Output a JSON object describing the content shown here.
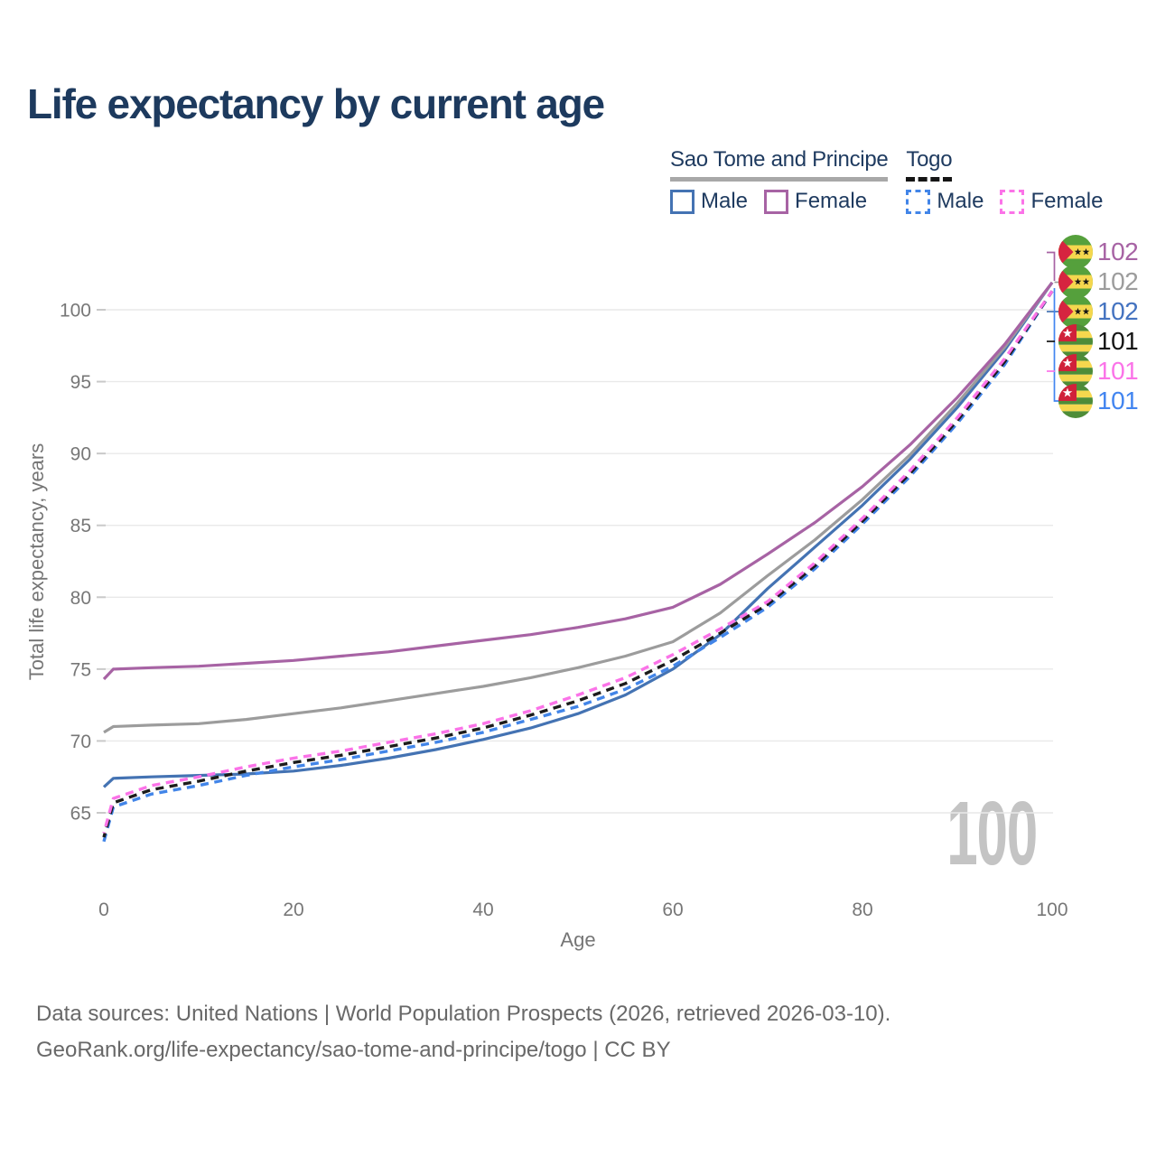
{
  "title": "Life expectancy by current age",
  "legend": {
    "groups": [
      {
        "label": "Sao Tome and Principe",
        "underline": "solid",
        "items": [
          {
            "label": "Male",
            "series_id": "stp-male"
          },
          {
            "label": "Female",
            "series_id": "stp-female"
          }
        ]
      },
      {
        "label": "Togo",
        "underline": "dashed",
        "items": [
          {
            "label": "Male",
            "series_id": "togo-male"
          },
          {
            "label": "Female",
            "series_id": "togo-female"
          }
        ]
      }
    ]
  },
  "chart_data": {
    "type": "line",
    "title": "Life expectancy by current age",
    "xlabel": "Age",
    "ylabel": "Total life expectancy, years",
    "xlim": [
      0,
      100
    ],
    "ylim": [
      62,
      103
    ],
    "x_ticks": [
      0,
      20,
      40,
      60,
      80,
      100
    ],
    "y_ticks": [
      65,
      70,
      75,
      80,
      85,
      90,
      95,
      100
    ],
    "grid": "horizontal-only",
    "legend_position": "top-right",
    "series": [
      {
        "id": "stp-male",
        "country": "Sao Tome and Principe",
        "legend_label": "Male",
        "color": "#4473b3",
        "dashed": false,
        "points": [
          [
            0,
            66.8
          ],
          [
            1,
            67.4
          ],
          [
            5,
            67.5
          ],
          [
            10,
            67.6
          ],
          [
            15,
            67.7
          ],
          [
            20,
            67.9
          ],
          [
            25,
            68.3
          ],
          [
            30,
            68.8
          ],
          [
            35,
            69.4
          ],
          [
            40,
            70.1
          ],
          [
            45,
            70.9
          ],
          [
            50,
            71.9
          ],
          [
            55,
            73.2
          ],
          [
            60,
            75.0
          ],
          [
            65,
            77.4
          ],
          [
            70,
            80.6
          ],
          [
            75,
            83.5
          ],
          [
            80,
            86.4
          ],
          [
            85,
            89.6
          ],
          [
            90,
            93.2
          ],
          [
            95,
            97.2
          ],
          [
            100,
            101.9
          ]
        ]
      },
      {
        "id": "stp-both",
        "country": "Sao Tome and Principe",
        "legend_label": null,
        "color": "#9c9c9c",
        "dashed": false,
        "points": [
          [
            0,
            70.6
          ],
          [
            1,
            71.0
          ],
          [
            5,
            71.1
          ],
          [
            10,
            71.2
          ],
          [
            15,
            71.5
          ],
          [
            20,
            71.9
          ],
          [
            25,
            72.3
          ],
          [
            30,
            72.8
          ],
          [
            35,
            73.3
          ],
          [
            40,
            73.8
          ],
          [
            45,
            74.4
          ],
          [
            50,
            75.1
          ],
          [
            55,
            75.9
          ],
          [
            60,
            76.9
          ],
          [
            65,
            78.9
          ],
          [
            70,
            81.5
          ],
          [
            75,
            84.0
          ],
          [
            80,
            86.8
          ],
          [
            85,
            89.9
          ],
          [
            90,
            93.5
          ],
          [
            95,
            97.4
          ],
          [
            100,
            101.9
          ]
        ]
      },
      {
        "id": "stp-female",
        "country": "Sao Tome and Principe",
        "legend_label": "Female",
        "color": "#a763a4",
        "dashed": false,
        "points": [
          [
            0,
            74.3
          ],
          [
            1,
            75.0
          ],
          [
            5,
            75.1
          ],
          [
            10,
            75.2
          ],
          [
            15,
            75.4
          ],
          [
            20,
            75.6
          ],
          [
            25,
            75.9
          ],
          [
            30,
            76.2
          ],
          [
            35,
            76.6
          ],
          [
            40,
            77.0
          ],
          [
            45,
            77.4
          ],
          [
            50,
            77.9
          ],
          [
            55,
            78.5
          ],
          [
            60,
            79.3
          ],
          [
            65,
            80.9
          ],
          [
            70,
            83.0
          ],
          [
            75,
            85.2
          ],
          [
            80,
            87.7
          ],
          [
            85,
            90.6
          ],
          [
            90,
            93.9
          ],
          [
            95,
            97.6
          ],
          [
            100,
            101.9
          ]
        ]
      },
      {
        "id": "togo-male",
        "country": "Togo",
        "legend_label": "Male",
        "color": "#4285e8",
        "dashed": true,
        "points": [
          [
            0,
            63.0
          ],
          [
            1,
            65.4
          ],
          [
            5,
            66.3
          ],
          [
            10,
            66.9
          ],
          [
            15,
            67.6
          ],
          [
            20,
            68.2
          ],
          [
            25,
            68.7
          ],
          [
            30,
            69.3
          ],
          [
            35,
            69.9
          ],
          [
            40,
            70.6
          ],
          [
            45,
            71.5
          ],
          [
            50,
            72.4
          ],
          [
            55,
            73.6
          ],
          [
            60,
            75.2
          ],
          [
            65,
            77.2
          ],
          [
            70,
            79.3
          ],
          [
            75,
            82.0
          ],
          [
            80,
            85.1
          ],
          [
            85,
            88.4
          ],
          [
            90,
            92.1
          ],
          [
            95,
            96.2
          ],
          [
            100,
            101.3
          ]
        ]
      },
      {
        "id": "togo-both",
        "country": "Togo",
        "legend_label": null,
        "color": "#1c1c1c",
        "dashed": true,
        "points": [
          [
            0,
            63.3
          ],
          [
            1,
            65.7
          ],
          [
            5,
            66.6
          ],
          [
            10,
            67.2
          ],
          [
            15,
            67.9
          ],
          [
            20,
            68.5
          ],
          [
            25,
            69.0
          ],
          [
            30,
            69.6
          ],
          [
            35,
            70.2
          ],
          [
            40,
            70.9
          ],
          [
            45,
            71.8
          ],
          [
            50,
            72.8
          ],
          [
            55,
            74.0
          ],
          [
            60,
            75.6
          ],
          [
            65,
            77.5
          ],
          [
            70,
            79.5
          ],
          [
            75,
            82.2
          ],
          [
            80,
            85.3
          ],
          [
            85,
            88.6
          ],
          [
            90,
            92.3
          ],
          [
            95,
            96.4
          ],
          [
            100,
            101.3
          ]
        ]
      },
      {
        "id": "togo-female",
        "country": "Togo",
        "legend_label": "Female",
        "color": "#fb73e8",
        "dashed": true,
        "points": [
          [
            0,
            63.6
          ],
          [
            1,
            66.0
          ],
          [
            5,
            66.9
          ],
          [
            10,
            67.5
          ],
          [
            15,
            68.2
          ],
          [
            20,
            68.8
          ],
          [
            25,
            69.3
          ],
          [
            30,
            69.9
          ],
          [
            35,
            70.5
          ],
          [
            40,
            71.2
          ],
          [
            45,
            72.1
          ],
          [
            50,
            73.2
          ],
          [
            55,
            74.4
          ],
          [
            60,
            76.0
          ],
          [
            65,
            77.8
          ],
          [
            70,
            79.7
          ],
          [
            75,
            82.4
          ],
          [
            80,
            85.5
          ],
          [
            85,
            88.8
          ],
          [
            90,
            92.5
          ],
          [
            95,
            96.6
          ],
          [
            100,
            101.3
          ]
        ]
      }
    ]
  },
  "end_labels": [
    {
      "value": "102",
      "color": "#a763a4",
      "flag": "sao-tome-and-principe"
    },
    {
      "value": "102",
      "color": "#9c9c9c",
      "flag": "sao-tome-and-principe"
    },
    {
      "value": "102",
      "color": "#4473c0",
      "flag": "sao-tome-and-principe"
    },
    {
      "value": "101",
      "color": "#141414",
      "flag": "togo"
    },
    {
      "value": "101",
      "color": "#fb73e8",
      "flag": "togo"
    },
    {
      "value": "101",
      "color": "#4285f0",
      "flag": "togo"
    }
  ],
  "watermark": "100",
  "footer": {
    "line1": "Data sources: United Nations | World Population Prospects (2026, retrieved 2026-03-10).",
    "line2": "GeoRank.org/life-expectancy/sao-tome-and-principe/togo | CC BY"
  }
}
